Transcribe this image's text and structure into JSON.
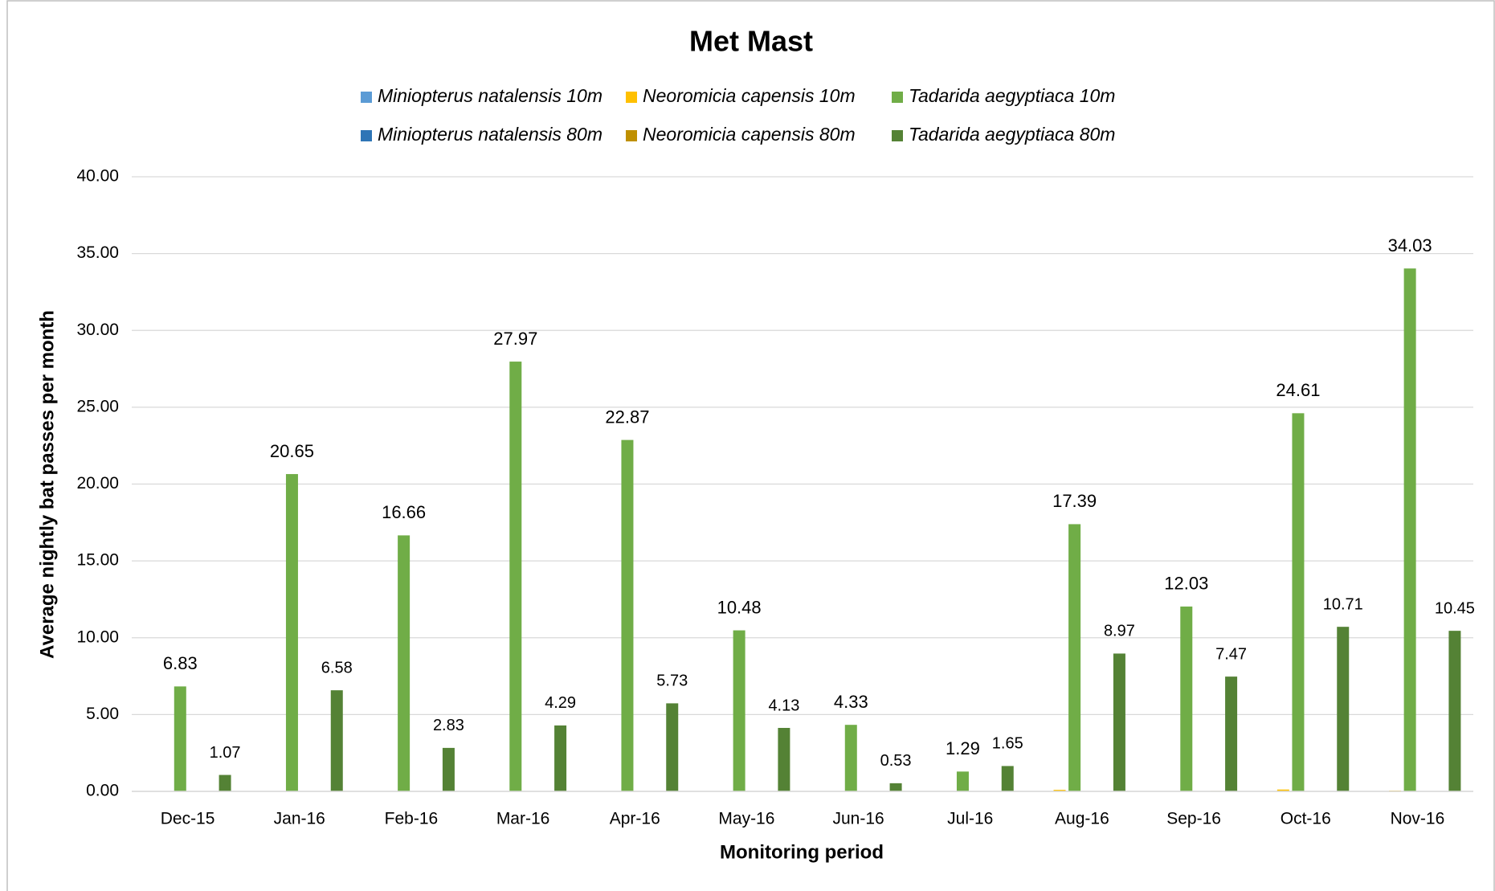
{
  "chart_data": {
    "type": "bar",
    "title": "Met Mast",
    "x_label": "Monitoring period",
    "y_label": "Average nightly bat passes per month",
    "categories": [
      "Dec-15",
      "Jan-16",
      "Feb-16",
      "Mar-16",
      "Apr-16",
      "May-16",
      "Jun-16",
      "Jul-16",
      "Aug-16",
      "Sep-16",
      "Oct-16",
      "Nov-16"
    ],
    "series": [
      {
        "name": "Miniopterus natalensis 10m",
        "color": "#5b9bd5",
        "values": [
          0,
          0,
          0,
          0,
          0,
          0,
          0,
          0,
          0,
          0,
          0,
          0.02
        ]
      },
      {
        "name": "Neoromicia capensis 10m",
        "color": "#ffc000",
        "values": [
          0,
          0,
          0,
          0,
          0,
          0,
          0,
          0,
          0.1,
          0,
          0.12,
          0.05
        ]
      },
      {
        "name": "Tadarida aegyptiaca 10m",
        "color": "#70ad47",
        "data_labels": true,
        "values": [
          6.83,
          20.65,
          16.66,
          27.97,
          22.87,
          10.48,
          4.33,
          1.29,
          17.39,
          12.03,
          24.61,
          34.03
        ]
      },
      {
        "name": "Miniopterus natalensis 80m",
        "color": "#2e75b6",
        "values": [
          0,
          0,
          0,
          0,
          0,
          0,
          0,
          0,
          0,
          0,
          0,
          0.02
        ]
      },
      {
        "name": "Neoromicia capensis 80m",
        "color": "#bf9000",
        "values": [
          0,
          0,
          0,
          0,
          0,
          0,
          0,
          0,
          0,
          0.03,
          0,
          0.02
        ]
      },
      {
        "name": "Tadarida aegyptiaca 80m",
        "color": "#548235",
        "data_labels": true,
        "values": [
          1.07,
          6.58,
          2.83,
          4.29,
          5.73,
          4.13,
          0.53,
          1.65,
          8.97,
          7.47,
          10.71,
          10.45
        ]
      }
    ],
    "ylim": [
      0,
      40
    ],
    "yticks": [
      {
        "value": 0,
        "label": "0.00"
      },
      {
        "value": 5,
        "label": "5.00"
      },
      {
        "value": 10,
        "label": "10.00"
      },
      {
        "value": 15,
        "label": "15.00"
      },
      {
        "value": 20,
        "label": "20.00"
      },
      {
        "value": 25,
        "label": "25.00"
      },
      {
        "value": 30,
        "label": "30.00"
      },
      {
        "value": 35,
        "label": "35.00"
      },
      {
        "value": 40,
        "label": "40.00"
      }
    ],
    "grid": true,
    "legend": "top"
  }
}
